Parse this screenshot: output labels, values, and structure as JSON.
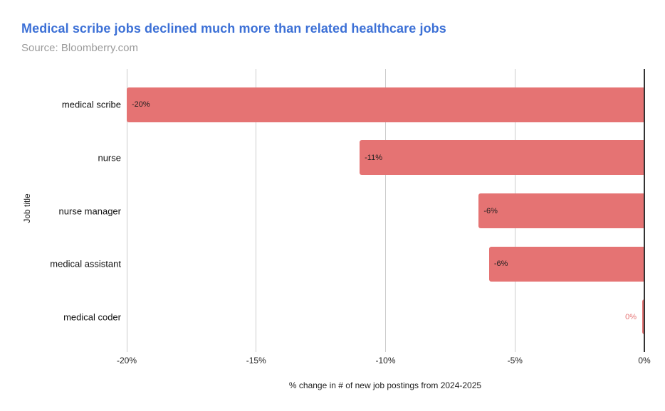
{
  "header": {
    "title": "Medical scribe jobs declined much more than related healthcare jobs",
    "source": "Source: Bloomberry.com",
    "title_color": "#3c70d6"
  },
  "chart_data": {
    "type": "bar",
    "orientation": "horizontal",
    "title": "Medical scribe jobs declined much more than related healthcare jobs",
    "subtitle": "Source: Bloomberry.com",
    "categories": [
      "medical scribe",
      "nurse",
      "nurse manager",
      "medical assistant",
      "medical coder"
    ],
    "values": [
      -20,
      -11,
      -6.4,
      -6,
      0
    ],
    "value_labels": [
      "-20%",
      "-11%",
      "-6%",
      "-6%",
      "0%"
    ],
    "value_label_inside": [
      true,
      true,
      true,
      true,
      false
    ],
    "xlabel": "% change in # of new job postings from 2024-2025",
    "ylabel": "Job title",
    "xlim": [
      -20,
      0
    ],
    "ticks": [
      {
        "value": -20,
        "label": "-20%"
      },
      {
        "value": -15,
        "label": "-15%"
      },
      {
        "value": -10,
        "label": "-10%"
      },
      {
        "value": -5,
        "label": "-5%"
      },
      {
        "value": 0,
        "label": "0%"
      }
    ],
    "grid": "vertical",
    "legend": "none",
    "bar_color": "#e57373",
    "axis_line_color": "#333333",
    "gridline_color": "#cccccc"
  }
}
